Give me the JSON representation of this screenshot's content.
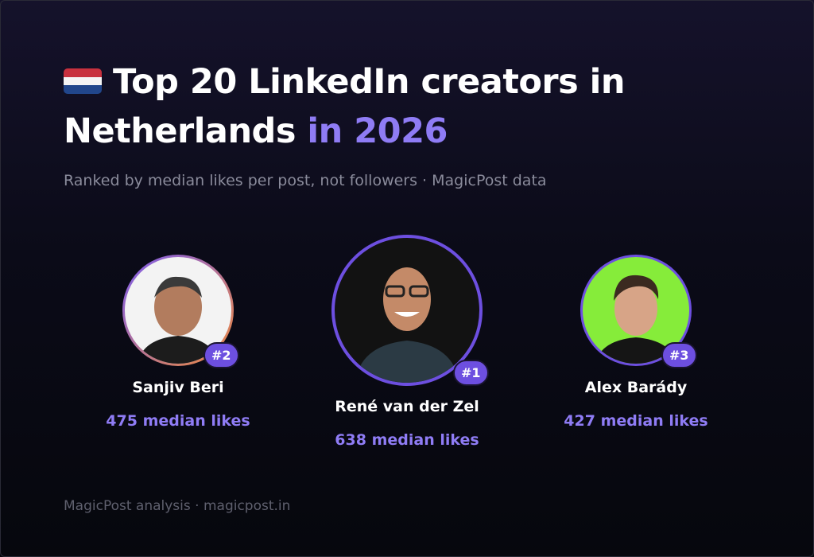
{
  "header": {
    "title": "Top 20 LinkedIn creators in Netherlands",
    "title_highlight": "in 2026",
    "subtitle": "Ranked by median likes per post, not followers · MagicPost data"
  },
  "podium": [
    {
      "rank": "#2",
      "name": "Sanjiv Beri",
      "likes": "475 median likes"
    },
    {
      "rank": "#1",
      "name": "René van der Zel",
      "likes": "638 median likes"
    },
    {
      "rank": "#3",
      "name": "Alex Barády",
      "likes": "427 median likes"
    }
  ],
  "footer": "MagicPost analysis · magicpost.in"
}
